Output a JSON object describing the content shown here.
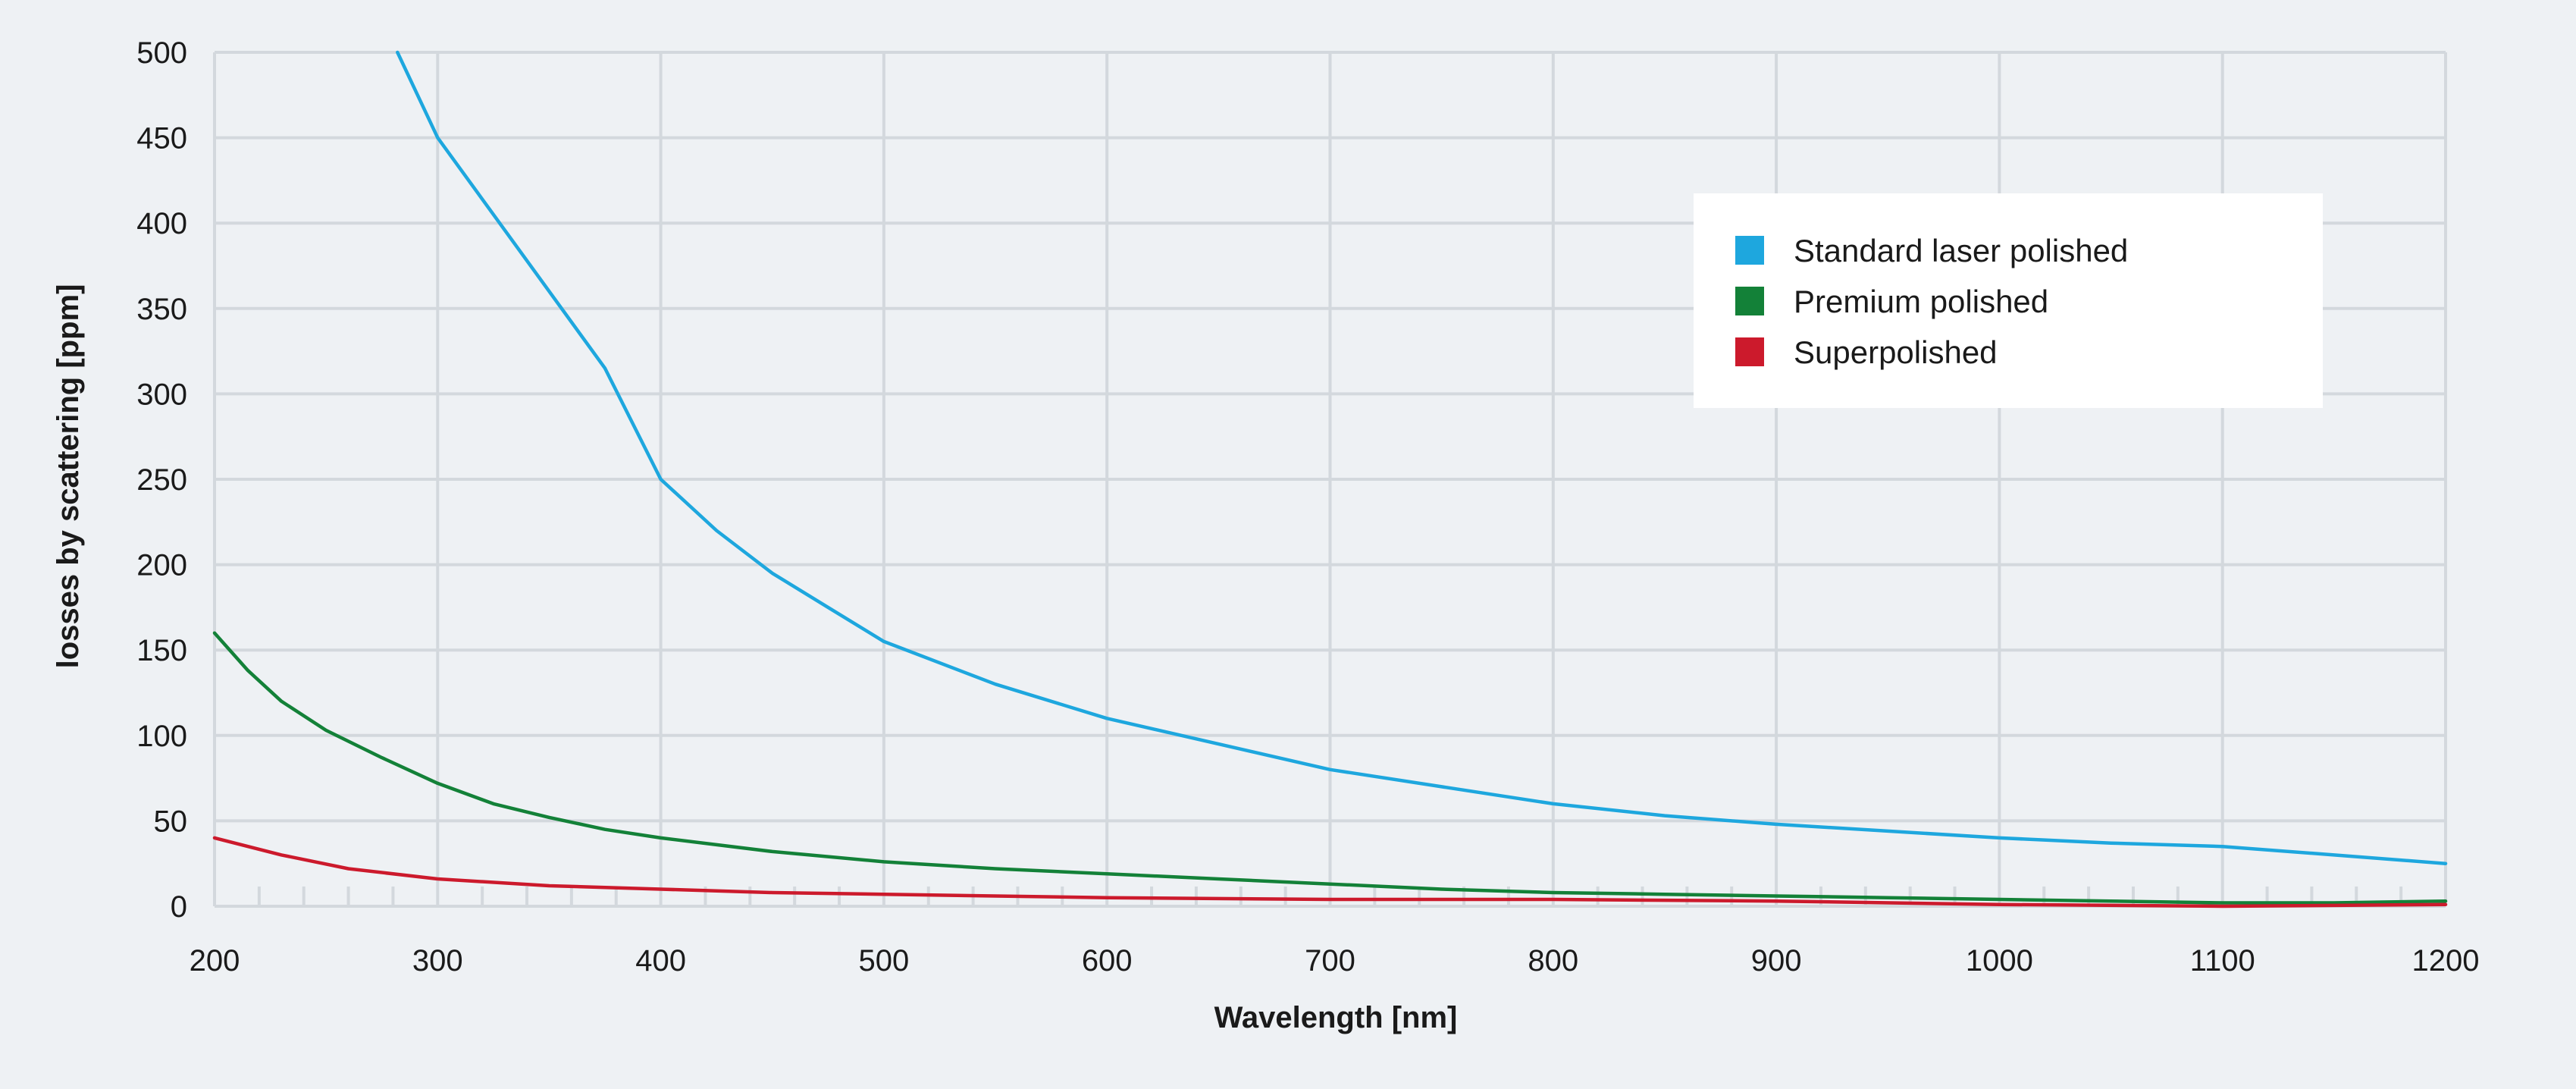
{
  "chart_data": {
    "type": "line",
    "title": "",
    "xlabel": "Wavelength [nm]",
    "ylabel": "losses by scattering [ppm]",
    "xlim": [
      200,
      1200
    ],
    "ylim": [
      0,
      500
    ],
    "x_ticks": [
      200,
      300,
      400,
      500,
      600,
      700,
      800,
      900,
      1000,
      1100,
      1200
    ],
    "y_ticks": [
      0,
      50,
      100,
      150,
      200,
      250,
      300,
      350,
      400,
      450,
      500
    ],
    "x_minor_step": 20,
    "grid": true,
    "legend_position": "top-right",
    "series": [
      {
        "name": "Standard laser polished",
        "color": "#1ea7de",
        "x": [
          282,
          300,
          325,
          350,
          375,
          400,
          425,
          450,
          475,
          500,
          550,
          600,
          650,
          700,
          750,
          800,
          850,
          900,
          950,
          1000,
          1050,
          1100,
          1150,
          1200
        ],
        "y": [
          500,
          450,
          405,
          360,
          315,
          250,
          220,
          195,
          175,
          155,
          130,
          110,
          95,
          80,
          70,
          60,
          53,
          48,
          44,
          40,
          37,
          35,
          30,
          25
        ]
      },
      {
        "name": "Premium polished",
        "color": "#138138",
        "x": [
          200,
          215,
          230,
          250,
          275,
          300,
          325,
          350,
          375,
          400,
          450,
          500,
          550,
          600,
          650,
          700,
          750,
          800,
          850,
          900,
          950,
          1000,
          1050,
          1100,
          1150,
          1200
        ],
        "y": [
          160,
          138,
          120,
          103,
          87,
          72,
          60,
          52,
          45,
          40,
          32,
          26,
          22,
          19,
          16,
          13,
          10,
          8,
          7,
          6,
          5,
          4,
          3,
          2,
          2,
          3
        ]
      },
      {
        "name": "Superpolished",
        "color": "#cc1a2c",
        "x": [
          200,
          230,
          260,
          300,
          350,
          400,
          450,
          500,
          550,
          600,
          700,
          800,
          900,
          1000,
          1100,
          1200
        ],
        "y": [
          40,
          30,
          22,
          16,
          12,
          10,
          8,
          7,
          6,
          5,
          4,
          4,
          3,
          1,
          0,
          1
        ]
      }
    ]
  }
}
